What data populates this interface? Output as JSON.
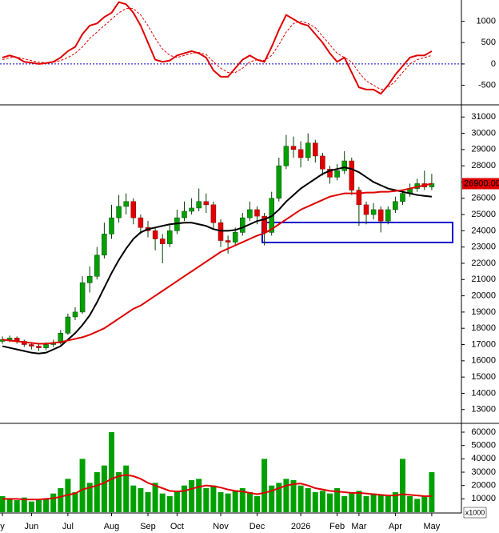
{
  "chart_data": [
    {
      "type": "line",
      "ylim": [
        -940,
        1500
      ],
      "yticks": [
        -500,
        0,
        500,
        1000
      ],
      "reference_line": 0,
      "reference_color": "#0000cc",
      "series": [
        {
          "color": "#e00000",
          "values": [
            150,
            200,
            150,
            50,
            30,
            0,
            20,
            50,
            150,
            300,
            400,
            700,
            900,
            950,
            1100,
            1200,
            1450,
            1400,
            1200,
            900,
            500,
            100,
            50,
            80,
            200,
            250,
            300,
            250,
            150,
            -150,
            -300,
            -300,
            -100,
            100,
            200,
            100,
            50,
            400,
            800,
            1150,
            1050,
            950,
            900,
            700,
            500,
            250,
            50,
            150,
            -200,
            -550,
            -600,
            -600,
            -700,
            -500,
            -250,
            -50,
            150,
            200,
            200,
            300
          ]
        },
        {
          "color": "#e00000",
          "dashed": true,
          "values": [
            100,
            150,
            160,
            120,
            80,
            40,
            30,
            40,
            80,
            150,
            250,
            400,
            600,
            750,
            900,
            1050,
            1200,
            1300,
            1300,
            1150,
            900,
            600,
            350,
            200,
            150,
            200,
            250,
            270,
            220,
            50,
            -100,
            -200,
            -200,
            -100,
            50,
            100,
            80,
            200,
            450,
            750,
            950,
            1000,
            950,
            850,
            650,
            450,
            250,
            150,
            50,
            -200,
            -400,
            -500,
            -600,
            -550,
            -400,
            -200,
            0,
            100,
            150,
            200
          ]
        }
      ]
    },
    {
      "type": "candlestick",
      "ylim": [
        12200,
        31700
      ],
      "yticks": [
        13000,
        14000,
        15000,
        16000,
        17000,
        18000,
        19000,
        20000,
        21000,
        22000,
        23000,
        24000,
        25000,
        26000,
        27000,
        28000,
        29000,
        30000,
        31000
      ],
      "up_color": "#00a000",
      "down_color": "#e00000",
      "open": [
        17200,
        17300,
        17400,
        17200,
        17000,
        16900,
        16800,
        17000,
        17100,
        17700,
        18700,
        19000,
        20800,
        21200,
        22500,
        23800,
        24800,
        25500,
        25800,
        24800,
        24200,
        24000,
        23500,
        23200,
        24000,
        24800,
        25200,
        25400,
        25800,
        25600,
        24500,
        23400,
        23300,
        23900,
        24800,
        25300,
        24900,
        23900,
        26000,
        28000,
        29200,
        29000,
        28500,
        29400,
        28600,
        27800,
        27300,
        27700,
        28300,
        26500,
        25600,
        25000,
        25300,
        24600,
        25300,
        25800,
        26300,
        26600,
        26900,
        26700
      ],
      "high": [
        17500,
        17550,
        17500,
        17300,
        17150,
        17000,
        17150,
        17300,
        17900,
        18900,
        19300,
        21200,
        21800,
        23000,
        24500,
        25600,
        26200,
        26300,
        26000,
        25000,
        24600,
        24200,
        23800,
        24400,
        25300,
        25800,
        26000,
        26600,
        26300,
        25800,
        24700,
        23700,
        24200,
        25100,
        25800,
        25500,
        25100,
        26400,
        28500,
        29900,
        29800,
        29500,
        30000,
        29600,
        28800,
        28000,
        28100,
        28900,
        28500,
        26700,
        25800,
        25700,
        25500,
        25500,
        26100,
        26500,
        26900,
        27200,
        27700,
        27500
      ],
      "low": [
        17050,
        17150,
        17050,
        16850,
        16700,
        16600,
        16650,
        16850,
        17000,
        17600,
        18500,
        18900,
        20200,
        21000,
        22300,
        23500,
        24500,
        25000,
        24400,
        23800,
        23600,
        22800,
        22000,
        23000,
        23800,
        24600,
        25000,
        25200,
        25100,
        24100,
        23000,
        22600,
        23100,
        23700,
        24600,
        24400,
        23100,
        23700,
        25800,
        27800,
        28500,
        27900,
        28300,
        28200,
        27400,
        26900,
        27100,
        27500,
        26200,
        24300,
        24400,
        24700,
        23900,
        24400,
        25100,
        25600,
        26100,
        26400,
        26500,
        26500
      ],
      "close": [
        17300,
        17400,
        17200,
        17000,
        16900,
        16800,
        17000,
        17100,
        17700,
        18700,
        19000,
        20800,
        21200,
        22500,
        23800,
        24800,
        25500,
        25800,
        24800,
        24200,
        24000,
        23500,
        23200,
        24000,
        24800,
        25200,
        25400,
        25800,
        25600,
        24500,
        23400,
        23300,
        23900,
        24800,
        25300,
        24900,
        23900,
        26000,
        28000,
        29200,
        29000,
        28500,
        29400,
        28600,
        27800,
        27300,
        27700,
        28300,
        26500,
        25600,
        25000,
        25300,
        24600,
        25300,
        25800,
        26300,
        26600,
        26900,
        26700,
        26900
      ],
      "series": [
        {
          "color": "#000000",
          "values": [
            16900,
            16800,
            16700,
            16600,
            16500,
            16450,
            16500,
            16700,
            16900,
            17300,
            17700,
            18200,
            18800,
            19600,
            20500,
            21400,
            22200,
            22900,
            23500,
            23900,
            24100,
            24200,
            24300,
            24400,
            24450,
            24500,
            24500,
            24400,
            24300,
            24100,
            24000,
            24000,
            24050,
            24200,
            24400,
            24600,
            24700,
            24900,
            25300,
            25800,
            26200,
            26600,
            26900,
            27200,
            27500,
            27700,
            27800,
            27900,
            27800,
            27600,
            27300,
            27000,
            26800,
            26600,
            26500,
            26400,
            26300,
            26200,
            26150,
            26100
          ]
        },
        {
          "color": "#e00000",
          "values": [
            17300,
            17250,
            17200,
            17150,
            17100,
            17050,
            17050,
            17100,
            17150,
            17250,
            17350,
            17450,
            17600,
            17800,
            18000,
            18300,
            18600,
            18900,
            19200,
            19400,
            19700,
            20000,
            20300,
            20600,
            20900,
            21200,
            21500,
            21800,
            22100,
            22400,
            22700,
            22900,
            23100,
            23300,
            23500,
            23700,
            23850,
            24100,
            24400,
            24700,
            25000,
            25300,
            25500,
            25700,
            25900,
            26100,
            26200,
            26300,
            26300,
            26300,
            26350,
            26350,
            26400,
            26400,
            26450,
            26500,
            26600,
            26700,
            26800,
            26900
          ]
        }
      ],
      "last_price": {
        "value": 26900,
        "label": "26900.00"
      }
    },
    {
      "type": "bar",
      "ylim": [
        0,
        66000
      ],
      "yticks": [
        10000,
        20000,
        30000,
        40000,
        50000,
        60000
      ],
      "unit_label": "x1000",
      "color": "#00a000",
      "categories": [
        "y",
        null,
        null,
        null,
        "Jun",
        null,
        null,
        null,
        null,
        "Jul",
        null,
        null,
        null,
        null,
        null,
        "Aug",
        null,
        null,
        null,
        null,
        "Sep",
        null,
        null,
        null,
        "Oct",
        null,
        null,
        null,
        null,
        null,
        "Nov",
        null,
        null,
        null,
        null,
        "Dec",
        null,
        null,
        null,
        null,
        null,
        "2026",
        null,
        null,
        null,
        null,
        "Feb",
        null,
        null,
        "Mar",
        null,
        null,
        null,
        null,
        "Apr",
        null,
        null,
        null,
        null,
        "May"
      ],
      "values": [
        12000,
        10000,
        9000,
        11000,
        8000,
        9000,
        10000,
        14000,
        18000,
        25000,
        15000,
        40000,
        22000,
        30000,
        35000,
        60000,
        30000,
        35000,
        20000,
        18000,
        15000,
        22000,
        14000,
        12000,
        16000,
        20000,
        24000,
        25000,
        18000,
        20000,
        15000,
        14000,
        16000,
        18000,
        15000,
        12000,
        40000,
        20000,
        22000,
        25000,
        24000,
        20000,
        18000,
        15000,
        16000,
        14000,
        18000,
        12000,
        15000,
        16000,
        12000,
        14000,
        13000,
        12000,
        15000,
        40000,
        12000,
        10000,
        12000,
        30000
      ],
      "series": [
        {
          "color": "#e00000",
          "values": [
            10000,
            10000,
            10000,
            9500,
            9500,
            9500,
            10000,
            10500,
            11500,
            13000,
            14000,
            17000,
            18500,
            20000,
            22000,
            25000,
            27000,
            28000,
            27000,
            25000,
            22000,
            20000,
            18000,
            16000,
            15500,
            16000,
            17500,
            19000,
            20000,
            19500,
            18500,
            17000,
            16000,
            15500,
            14500,
            13500,
            14500,
            16000,
            18000,
            20000,
            21000,
            21500,
            20000,
            18000,
            17000,
            16000,
            15500,
            15000,
            14500,
            14500,
            14000,
            13500,
            13000,
            12500,
            12500,
            13500,
            13000,
            12500,
            12000,
            12000
          ]
        }
      ]
    }
  ]
}
